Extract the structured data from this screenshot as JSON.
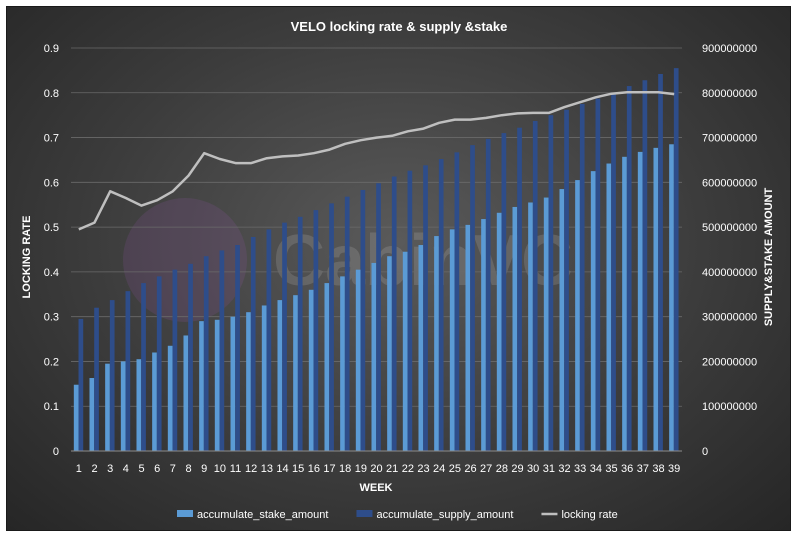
{
  "chart_data": {
    "type": "bar",
    "title": "VELO locking rate & supply &stake",
    "xlabel": "WEEK",
    "ylabel": "LOCKING RATE",
    "y2label": "SUPPLY&STAKE  AMOUNT",
    "watermark": "CabinVC",
    "ylim": [
      0,
      0.9
    ],
    "y2lim": [
      0,
      900000000
    ],
    "yticks": [
      "0",
      "0.1",
      "0.2",
      "0.3",
      "0.4",
      "0.5",
      "0.6",
      "0.7",
      "0.8",
      "0.9"
    ],
    "y2ticks": [
      "0",
      "100000000",
      "200000000",
      "300000000",
      "400000000",
      "500000000",
      "600000000",
      "700000000",
      "800000000",
      "900000000"
    ],
    "legend_position": "bottom",
    "grid": true,
    "categories": [
      "1",
      "2",
      "3",
      "4",
      "5",
      "6",
      "7",
      "8",
      "9",
      "10",
      "11",
      "12",
      "13",
      "14",
      "15",
      "16",
      "17",
      "18",
      "19",
      "20",
      "21",
      "22",
      "23",
      "24",
      "25",
      "26",
      "27",
      "28",
      "29",
      "30",
      "31",
      "32",
      "33",
      "34",
      "35",
      "36",
      "37",
      "38",
      "39"
    ],
    "series": [
      {
        "name": "accumulate_stake_amount",
        "kind": "bar",
        "axis": "right",
        "color": "#5b9bd5",
        "values": [
          148000000,
          163000000,
          195000000,
          200000000,
          205000000,
          220000000,
          235000000,
          258000000,
          290000000,
          293000000,
          300000000,
          310000000,
          325000000,
          337000000,
          348000000,
          360000000,
          375000000,
          390000000,
          405000000,
          420000000,
          435000000,
          445000000,
          460000000,
          480000000,
          495000000,
          505000000,
          518000000,
          532000000,
          545000000,
          555000000,
          566000000,
          585000000,
          605000000,
          625000000,
          642000000,
          657000000,
          668000000,
          677000000,
          685000000
        ]
      },
      {
        "name": "accumulate_supply_amount",
        "kind": "bar",
        "axis": "right",
        "color": "#2e4d8a",
        "values": [
          295000000,
          320000000,
          337000000,
          357000000,
          375000000,
          390000000,
          405000000,
          418000000,
          435000000,
          448000000,
          460000000,
          478000000,
          495000000,
          510000000,
          523000000,
          538000000,
          553000000,
          568000000,
          583000000,
          598000000,
          613000000,
          626000000,
          638000000,
          652000000,
          667000000,
          683000000,
          697000000,
          710000000,
          722000000,
          737000000,
          750000000,
          762000000,
          775000000,
          787000000,
          800000000,
          815000000,
          828000000,
          842000000,
          855000000
        ]
      },
      {
        "name": "locking rate",
        "kind": "line",
        "axis": "left",
        "color": "#bfbfbf",
        "values": [
          0.495,
          0.51,
          0.58,
          0.565,
          0.548,
          0.56,
          0.58,
          0.615,
          0.665,
          0.652,
          0.643,
          0.643,
          0.654,
          0.658,
          0.66,
          0.665,
          0.673,
          0.686,
          0.694,
          0.7,
          0.704,
          0.714,
          0.72,
          0.733,
          0.74,
          0.74,
          0.744,
          0.75,
          0.754,
          0.755,
          0.755,
          0.768,
          0.779,
          0.79,
          0.798,
          0.801,
          0.801,
          0.801,
          0.797
        ]
      }
    ]
  }
}
